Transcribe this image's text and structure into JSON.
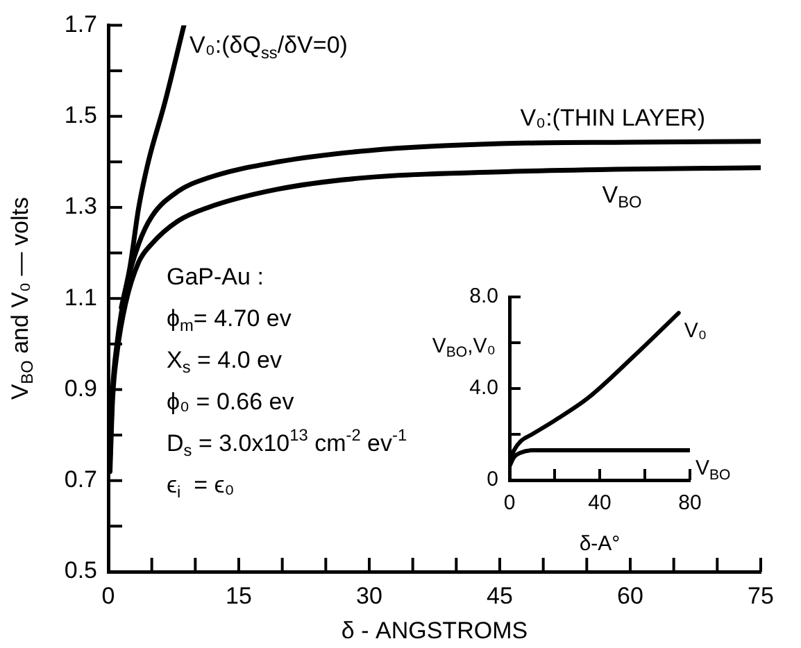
{
  "chart_data": [
    {
      "type": "line",
      "xlabel": "δ - ANGSTROMS",
      "ylabel": "V$_{BO}$ and V₀ — volts",
      "xlim": [
        0,
        75
      ],
      "ylim": [
        0.5,
        1.7
      ],
      "marker": "none",
      "xticks": [
        0,
        {
          "value": 5,
          "label": null
        },
        {
          "value": 10,
          "label": null
        },
        15,
        {
          "value": 20,
          "label": null
        },
        {
          "value": 25,
          "label": null
        },
        30,
        {
          "value": 35,
          "label": null
        },
        {
          "value": 40,
          "label": null
        },
        45,
        {
          "value": 50,
          "label": null
        },
        {
          "value": 55,
          "label": null
        },
        60,
        {
          "value": 65,
          "label": null
        },
        {
          "value": 70,
          "label": null
        },
        75
      ],
      "yticks": [
        0.5,
        {
          "value": 0.6,
          "label": null
        },
        0.7,
        {
          "value": 0.8,
          "label": null
        },
        0.9,
        {
          "value": 1.0,
          "label": null
        },
        1.1,
        {
          "value": 1.2,
          "label": null
        },
        1.3,
        {
          "value": 1.4,
          "label": null
        },
        1.5,
        {
          "value": 1.6,
          "label": null
        },
        1.7
      ],
      "series": [
        {
          "name": "V₀:(δQ$_{ss}$/δV=0)",
          "color": "#000000",
          "x": [
            1.5,
            2.5,
            3.5,
            4.6,
            6.5,
            8.7
          ],
          "values": [
            1.08,
            1.17,
            1.3,
            1.4,
            1.53,
            1.7
          ]
        },
        {
          "name": "V₀:(THIN LAYER)",
          "color": "#000000",
          "x": [
            0.2,
            0.5,
            1,
            2,
            3.5,
            5,
            8,
            11.5,
            19.5,
            30,
            45,
            60,
            75
          ],
          "values": [
            0.75,
            0.9,
            1.0,
            1.12,
            1.22,
            1.28,
            1.335,
            1.365,
            1.4,
            1.425,
            1.44,
            1.443,
            1.445
          ]
        },
        {
          "name": "V$_{BO}$",
          "color": "#000000",
          "x": [
            0.2,
            0.5,
            1,
            2,
            3.5,
            5,
            8,
            11.5,
            19.5,
            30,
            45,
            60,
            75
          ],
          "values": [
            0.72,
            0.88,
            0.98,
            1.09,
            1.18,
            1.22,
            1.27,
            1.3,
            1.34,
            1.366,
            1.378,
            1.384,
            1.387
          ]
        }
      ],
      "annotations": [
        "GaP-Au :",
        "ϕ$_{m}$= 4.70 ev",
        "X$_{s}$ = 4.0 ev",
        "ϕ₀ = 0.66 ev",
        "D$_{s}$ = 3.0x10$^{13}$ cm$^{-2}$ ev$^{-1}$",
        "ϵ$_{i}$  = ϵ₀"
      ]
    },
    {
      "type": "line",
      "xlabel": "δ-A°",
      "ylabel": "V$_{BO}$,V₀",
      "xlim": [
        0,
        80
      ],
      "ylim": [
        0,
        8
      ],
      "marker": "none",
      "xticks": [
        0,
        {
          "value": 20,
          "label": null
        },
        40,
        {
          "value": 60,
          "label": null
        },
        80
      ],
      "yticks": [
        0,
        {
          "value": 2,
          "label": null
        },
        {
          "value": 4,
          "label": "4.0"
        },
        {
          "value": 6,
          "label": null
        },
        {
          "value": 8,
          "label": "8.0"
        }
      ],
      "series": [
        {
          "name": "V₀",
          "color": "#000000",
          "x": [
            0,
            2,
            5,
            10,
            20,
            35,
            55,
            75
          ],
          "values": [
            0.8,
            1.3,
            1.7,
            2.0,
            2.6,
            3.6,
            5.4,
            7.3
          ]
        },
        {
          "name": "V$_{BO}$",
          "color": "#000000",
          "x": [
            0,
            2,
            5,
            10,
            20,
            40,
            60,
            80
          ],
          "values": [
            0.6,
            1.0,
            1.2,
            1.3,
            1.3,
            1.3,
            1.3,
            1.3
          ]
        }
      ]
    }
  ]
}
